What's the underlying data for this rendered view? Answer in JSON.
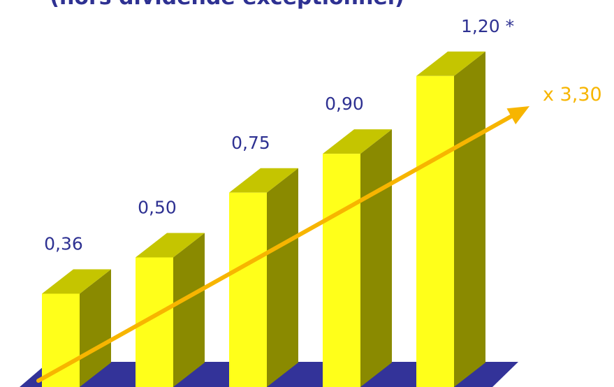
{
  "subtitle": "(hors dividende exceptionnel)",
  "growth_label": "x 3,30",
  "colors": {
    "bar_front": "#ffff1a",
    "bar_top": "#c5c500",
    "bar_side": "#8a8a00",
    "floor": "#333399",
    "value_text": "#2e3192",
    "arrow": "#f7b500"
  },
  "chart_data": {
    "type": "bar",
    "style": "3d",
    "values": [
      0.36,
      0.5,
      0.75,
      0.9,
      1.2
    ],
    "value_labels": [
      "0,36",
      "0,50",
      "0,75",
      "0,90",
      "1,20 *"
    ],
    "trend_arrow": true
  }
}
